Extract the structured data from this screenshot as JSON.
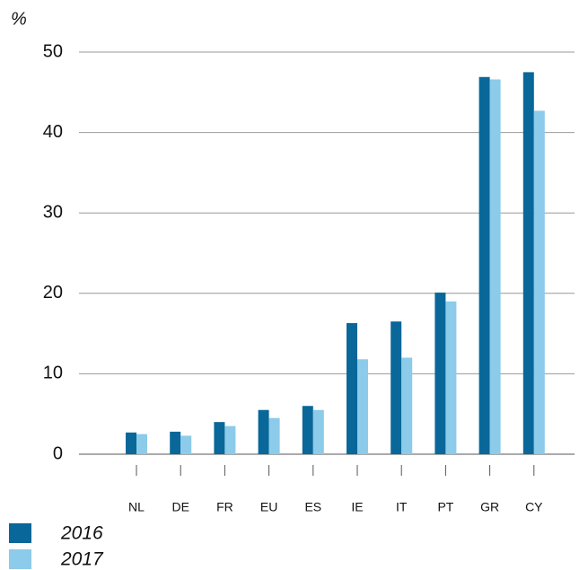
{
  "chart_data": {
    "type": "bar",
    "y_label": "%",
    "categories": [
      "NL",
      "DE",
      "FR",
      "EU",
      "ES",
      "IE",
      "IT",
      "PT",
      "GR",
      "CY"
    ],
    "series": [
      {
        "name": "2016",
        "color": "#09679a",
        "values": [
          2.7,
          2.8,
          4.0,
          5.5,
          6.0,
          16.3,
          16.5,
          20.1,
          46.9,
          47.5
        ]
      },
      {
        "name": "2017",
        "color": "#8ccbe9",
        "values": [
          2.5,
          2.3,
          3.5,
          4.5,
          5.5,
          11.8,
          12.0,
          19.0,
          46.6,
          42.7
        ]
      }
    ],
    "ylim": [
      0,
      50
    ],
    "yticks": [
      0,
      10,
      20,
      30,
      40,
      50
    ],
    "grid": true,
    "legend": "bottom-left"
  }
}
